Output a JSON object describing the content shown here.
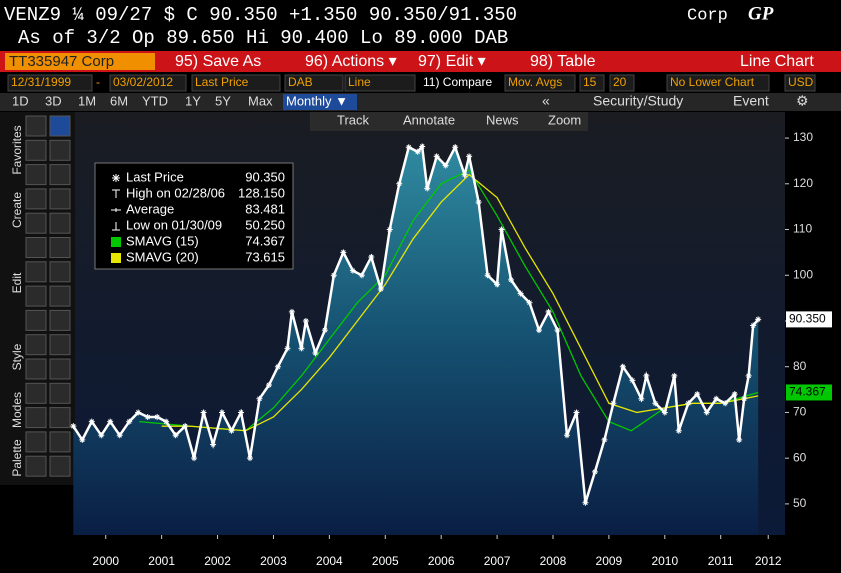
{
  "ui": {
    "header": {
      "quote": "VENZ9 ¼ 09/27 $ C 90.350 +1.350  90.350/91.350",
      "type": "Corp",
      "logo": "GP",
      "summary": "As of 3/2  Op 89.650  Hi 90.400  Lo 89.000  DAB"
    },
    "menu": {
      "security": "TT335947 Corp",
      "items": [
        "95) Save As",
        "96) Actions ▾",
        "97) Edit ▾",
        "98) Table"
      ],
      "view": "Line Chart"
    },
    "fields": [
      "12/31/1999",
      "-",
      "03/02/2012",
      "Last Price",
      "DAB",
      "Line",
      "11) Compare",
      "Mov. Avgs",
      "15",
      "20",
      "No Lower Chart",
      "USD"
    ],
    "periods": [
      "1D",
      "3D",
      "1M",
      "6M",
      "YTD",
      "1Y",
      "5Y",
      "Max"
    ],
    "frequency": "Monthly ▼",
    "collapse": "«",
    "study": "Security/Study",
    "event": "Event",
    "settings": "⚙",
    "chart_tools": [
      "Track",
      "Annotate",
      "News",
      "Zoom"
    ],
    "sidebar": [
      "Favorites",
      "Create",
      "Edit",
      "Style",
      "Modes",
      "Palette"
    ]
  },
  "chart_data": {
    "type": "line",
    "x": [
      1999.92,
      2000.08,
      2000.25,
      2000.42,
      2000.58,
      2000.75,
      2000.92,
      2001.08,
      2001.25,
      2001.42,
      2001.58,
      2001.75,
      2001.92,
      2002.08,
      2002.25,
      2002.42,
      2002.58,
      2002.75,
      2002.92,
      2003.08,
      2003.25,
      2003.42,
      2003.58,
      2003.75,
      2003.83,
      2004.0,
      2004.08,
      2004.25,
      2004.42,
      2004.58,
      2004.75,
      2004.92,
      2005.08,
      2005.25,
      2005.42,
      2005.58,
      2005.75,
      2005.92,
      2006.08,
      2006.16,
      2006.25,
      2006.42,
      2006.58,
      2006.75,
      2006.92,
      2007.0,
      2007.17,
      2007.33,
      2007.5,
      2007.58,
      2007.75,
      2007.92,
      2008.08,
      2008.25,
      2008.42,
      2008.58,
      2008.75,
      2008.92,
      2009.08,
      2009.25,
      2009.42,
      2009.58,
      2009.75,
      2009.92,
      2010.08,
      2010.17,
      2010.33,
      2010.5,
      2010.67,
      2010.75,
      2010.92,
      2011.08,
      2011.25,
      2011.42,
      2011.58,
      2011.75,
      2011.83,
      2011.92,
      2012.0,
      2012.08,
      2012.17
    ],
    "series": [
      {
        "name": "Last Price",
        "color": "#ffffff",
        "markers": true,
        "area": true,
        "values": [
          67,
          64,
          68,
          65,
          68,
          65,
          68,
          70,
          69,
          69,
          68,
          65,
          67,
          60,
          70,
          63,
          70,
          66,
          70,
          60,
          73,
          76,
          80,
          84,
          92,
          84,
          90,
          83,
          88,
          100,
          105,
          101,
          100,
          104,
          97,
          110,
          120,
          128,
          127,
          128.15,
          119,
          126,
          124,
          128,
          122,
          126,
          116,
          100,
          98,
          110,
          99,
          96,
          94,
          88,
          92,
          88,
          65,
          70,
          50.25,
          57,
          64,
          72,
          80,
          77,
          73,
          78,
          72,
          70,
          78,
          66,
          72,
          74,
          70,
          73,
          72,
          74,
          64,
          73,
          78,
          89,
          90.35
        ]
      },
      {
        "name": "SMAVG (15)",
        "color": "#00c800",
        "x": [
          2001.1,
          2002.0,
          2003.0,
          2003.5,
          2004.0,
          2004.5,
          2005.0,
          2005.5,
          2006.0,
          2006.5,
          2007.0,
          2007.5,
          2008.0,
          2008.5,
          2009.0,
          2009.5,
          2009.9,
          2010.5,
          2011.0,
          2011.5,
          2012.17
        ],
        "values": [
          68,
          67,
          66,
          71,
          78,
          86,
          94,
          100,
          112,
          120,
          123,
          113,
          102,
          92,
          78,
          68,
          66,
          71,
          72,
          72,
          74.367
        ]
      },
      {
        "name": "SMAVG (20)",
        "color": "#e6e600",
        "x": [
          2001.5,
          2002.0,
          2003.0,
          2003.5,
          2004.0,
          2004.5,
          2005.0,
          2005.5,
          2006.0,
          2006.5,
          2007.0,
          2007.5,
          2008.0,
          2008.5,
          2009.0,
          2009.5,
          2010.0,
          2010.5,
          2011.0,
          2011.5,
          2012.17
        ],
        "values": [
          67,
          67,
          66,
          69,
          75,
          82,
          90,
          98,
          108,
          116,
          122,
          117,
          106,
          96,
          84,
          72,
          70,
          71,
          72,
          72,
          73.615
        ]
      }
    ],
    "legend": {
      "names": [
        "Last Price",
        "High on 02/28/06",
        "Average",
        "Low on 01/30/09",
        "SMAVG (15)",
        "SMAVG (20)"
      ],
      "values": [
        90.35,
        128.15,
        83.481,
        50.25,
        74.367,
        73.615
      ],
      "value_labels": [
        "90.350",
        "128.150",
        "83.481",
        "50.250",
        "74.367",
        "73.615"
      ]
    },
    "xlim": [
      1999.95,
      2012.65
    ],
    "ylim": [
      43.2,
      135.7
    ],
    "xticks": [
      {
        "value": 2000.5,
        "label": "2000"
      },
      {
        "value": 2001.5,
        "label": "2001"
      },
      {
        "value": 2002.5,
        "label": "2002"
      },
      {
        "value": 2003.5,
        "label": "2003"
      },
      {
        "value": 2004.5,
        "label": "2004"
      },
      {
        "value": 2005.5,
        "label": "2005"
      },
      {
        "value": 2006.5,
        "label": "2006"
      },
      {
        "value": 2007.5,
        "label": "2007"
      },
      {
        "value": 2008.5,
        "label": "2008"
      },
      {
        "value": 2009.5,
        "label": "2009"
      },
      {
        "value": 2010.5,
        "label": "2010"
      },
      {
        "value": 2011.5,
        "label": "2011"
      },
      {
        "value": 2012.35,
        "label": "2012"
      }
    ],
    "yticks": [
      50,
      60,
      70,
      80,
      90,
      100,
      110,
      120,
      130
    ]
  }
}
